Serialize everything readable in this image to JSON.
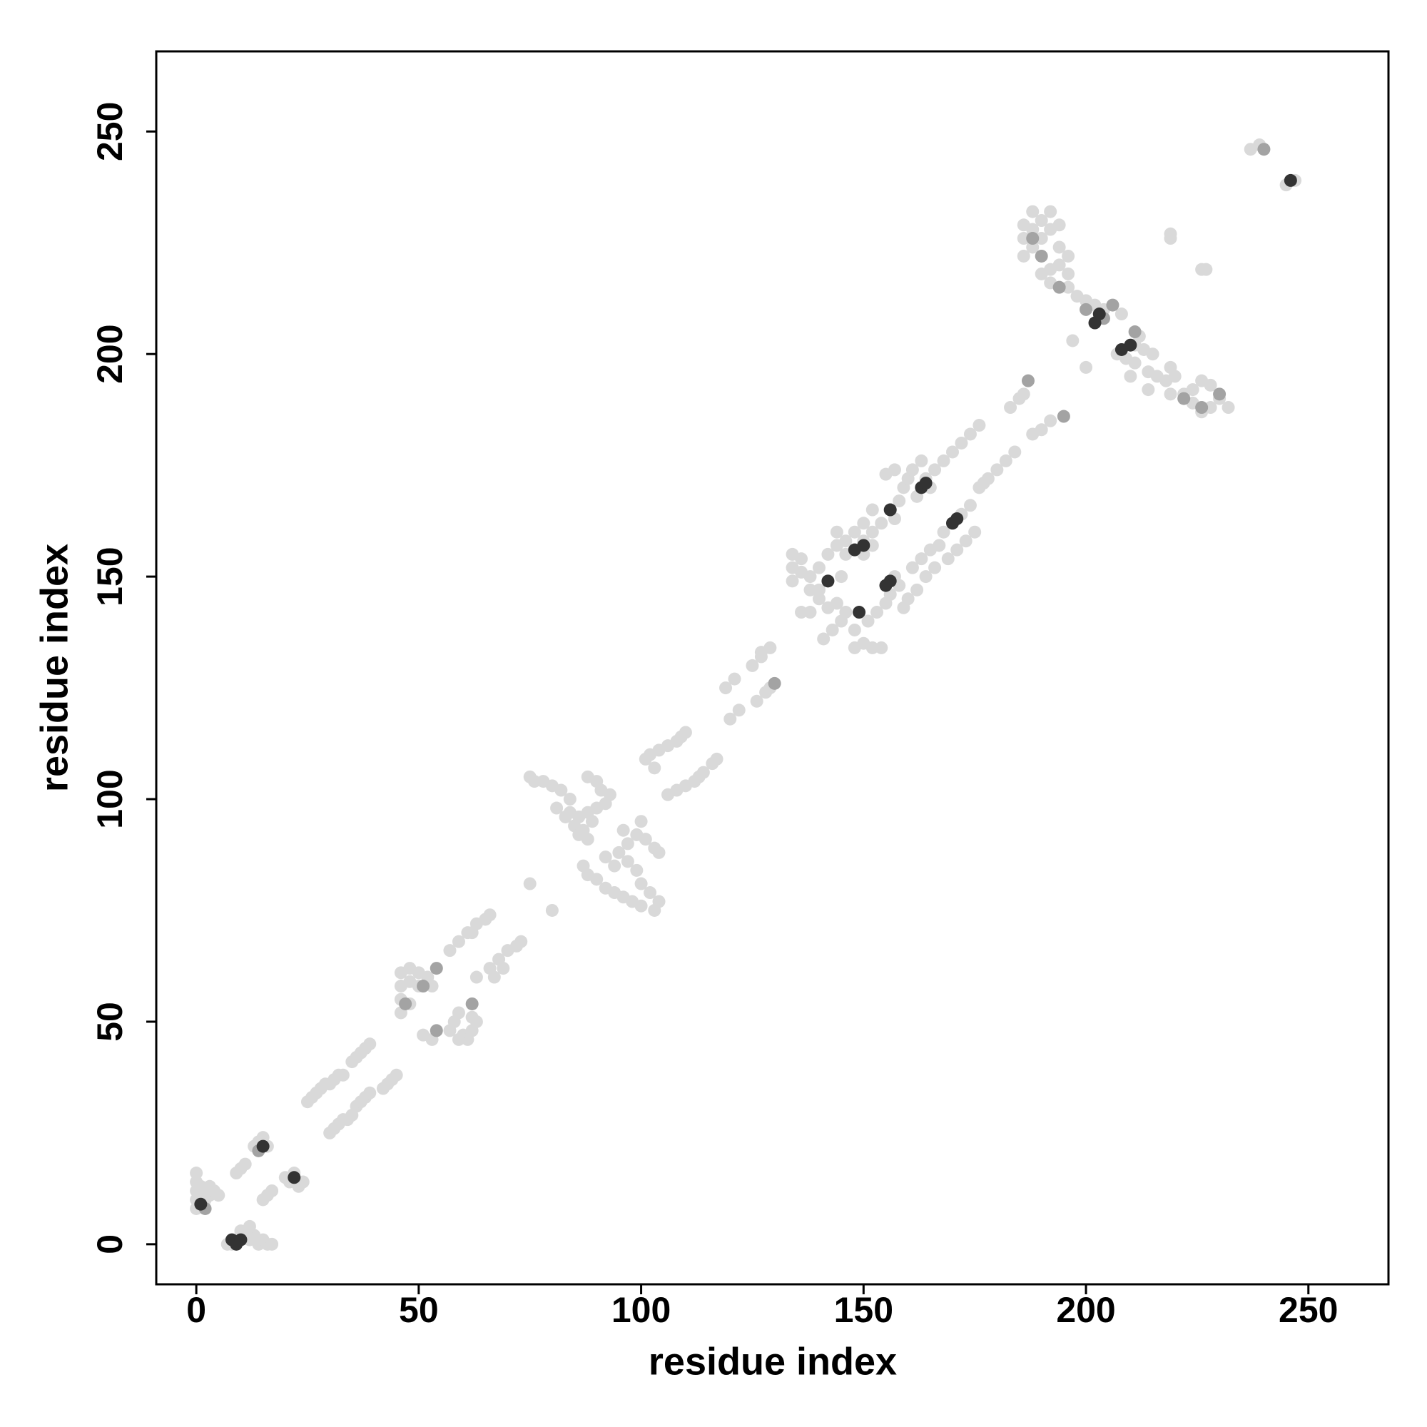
{
  "chart_data": {
    "type": "scatter",
    "xlabel": "residue index",
    "ylabel": "residue index",
    "xlim": [
      -9,
      268
    ],
    "ylim": [
      -9,
      268
    ],
    "xticks": [
      0,
      50,
      100,
      150,
      200,
      250
    ],
    "yticks": [
      0,
      50,
      100,
      150,
      200,
      250
    ],
    "grid": false,
    "series": [
      {
        "color": "#d9d9d9",
        "x": [
          0,
          0,
          0,
          0,
          0,
          1,
          1,
          2,
          2,
          3,
          3,
          4,
          5,
          7,
          8,
          11,
          12,
          13,
          14,
          15,
          16,
          17,
          10,
          12,
          13,
          14,
          15,
          14,
          16,
          20,
          21,
          22,
          23,
          24,
          9,
          10,
          11,
          15,
          16,
          17,
          25,
          26,
          27,
          28,
          29,
          30,
          31,
          32,
          33,
          35,
          36,
          37,
          38,
          39,
          30,
          31,
          32,
          33,
          34,
          35,
          36,
          37,
          38,
          39,
          42,
          43,
          44,
          45,
          46,
          46,
          46,
          46,
          48,
          48,
          48,
          50,
          50,
          52,
          53,
          51,
          53,
          57,
          58,
          59,
          60,
          61,
          62,
          63,
          59,
          62,
          57,
          59,
          61,
          63,
          65,
          66,
          62,
          63,
          66,
          68,
          70,
          72,
          73,
          67,
          69,
          75,
          80,
          75,
          76,
          78,
          80,
          82,
          84,
          81,
          83,
          85,
          86,
          87,
          88,
          84,
          89,
          88,
          90,
          91,
          93,
          92,
          90,
          88,
          86,
          87,
          88,
          90,
          92,
          94,
          96,
          98,
          100,
          103,
          104,
          102,
          100,
          99,
          97,
          95,
          97,
          99,
          101,
          103,
          104,
          100,
          96,
          94,
          92,
          101,
          102,
          104,
          106,
          108,
          109,
          110,
          103,
          106,
          108,
          110,
          112,
          114,
          116,
          117,
          113,
          119,
          121,
          125,
          127,
          129,
          127,
          120,
          122,
          126,
          128,
          129,
          134,
          134,
          134,
          136,
          136,
          138,
          138,
          140,
          140,
          142,
          142,
          144,
          144,
          146,
          146,
          148,
          148,
          150,
          150,
          152,
          152,
          154,
          156,
          158,
          157,
          159,
          160,
          161,
          163,
          164,
          165,
          162,
          155,
          157,
          150,
          152,
          145,
          142,
          144,
          140,
          138,
          136,
          166,
          168,
          170,
          172,
          174,
          176,
          141,
          143,
          145,
          146,
          148,
          148,
          150,
          152,
          154,
          151,
          153,
          155,
          156,
          157,
          158,
          159,
          160,
          162,
          161,
          163,
          165,
          167,
          168,
          170,
          172,
          174,
          175,
          173,
          171,
          169,
          166,
          164,
          176,
          178,
          180,
          182,
          184,
          177,
          185,
          186,
          183,
          188,
          190,
          192,
          186,
          186,
          186,
          188,
          188,
          188,
          190,
          190,
          192,
          192,
          194,
          194,
          194,
          196,
          196,
          196,
          198,
          200,
          202,
          204,
          208,
          192,
          192,
          190,
          197,
          200,
          207,
          209,
          211,
          211,
          213,
          215,
          214,
          216,
          218,
          219,
          220,
          222,
          224,
          226,
          228,
          230,
          232,
          224,
          226,
          228,
          210,
          214,
          212,
          219,
          219,
          219,
          226,
          227,
          237,
          239,
          247,
          245
        ],
        "y": [
          8,
          10,
          12,
          14,
          16,
          11,
          13,
          10,
          12,
          11,
          13,
          12,
          11,
          0,
          0,
          2,
          1,
          2,
          0,
          1,
          0,
          0,
          3,
          4,
          22,
          23,
          24,
          21,
          22,
          15,
          14,
          16,
          13,
          14,
          16,
          17,
          18,
          10,
          11,
          12,
          32,
          33,
          34,
          35,
          36,
          36,
          37,
          38,
          38,
          41,
          42,
          43,
          44,
          45,
          25,
          26,
          27,
          28,
          28,
          29,
          31,
          32,
          33,
          34,
          35,
          36,
          37,
          38,
          52,
          55,
          58,
          61,
          54,
          59,
          62,
          58,
          61,
          60,
          58,
          47,
          46,
          48,
          50,
          52,
          47,
          46,
          48,
          50,
          46,
          51,
          66,
          68,
          70,
          72,
          73,
          74,
          70,
          60,
          62,
          64,
          66,
          67,
          68,
          60,
          62,
          81,
          75,
          105,
          104,
          104,
          103,
          102,
          100,
          98,
          96,
          94,
          92,
          93,
          91,
          97,
          95,
          105,
          104,
          102,
          101,
          99,
          98,
          97,
          96,
          85,
          83,
          82,
          80,
          79,
          78,
          77,
          76,
          75,
          77,
          79,
          81,
          84,
          86,
          88,
          90,
          92,
          91,
          89,
          88,
          95,
          93,
          85,
          87,
          109,
          110,
          111,
          112,
          113,
          114,
          115,
          107,
          101,
          102,
          103,
          104,
          106,
          108,
          109,
          105,
          125,
          127,
          130,
          132,
          134,
          133,
          118,
          120,
          122,
          124,
          125,
          149,
          152,
          155,
          151,
          154,
          150,
          147,
          145,
          152,
          149,
          155,
          157,
          160,
          158,
          155,
          156,
          160,
          158,
          155,
          160,
          157,
          162,
          165,
          167,
          163,
          170,
          172,
          174,
          176,
          172,
          170,
          168,
          173,
          174,
          162,
          165,
          150,
          143,
          144,
          147,
          142,
          142,
          174,
          176,
          178,
          180,
          182,
          184,
          136,
          138,
          140,
          142,
          138,
          134,
          135,
          134,
          134,
          140,
          142,
          144,
          146,
          150,
          148,
          143,
          145,
          147,
          152,
          154,
          156,
          157,
          160,
          162,
          164,
          166,
          160,
          158,
          156,
          154,
          152,
          150,
          170,
          172,
          174,
          176,
          178,
          171,
          190,
          191,
          188,
          182,
          183,
          185,
          222,
          226,
          229,
          224,
          228,
          232,
          226,
          230,
          228,
          232,
          220,
          224,
          229,
          215,
          218,
          222,
          213,
          212,
          211,
          210,
          209,
          216,
          219,
          218,
          203,
          197,
          200,
          199,
          198,
          202,
          201,
          200,
          196,
          195,
          194,
          197,
          195,
          191,
          189,
          187,
          188,
          190,
          188,
          192,
          194,
          193,
          195,
          192,
          204,
          191,
          226,
          227,
          219,
          219,
          246,
          247,
          239,
          238
        ]
      },
      {
        "color": "#a3a3a3",
        "x": [
          47,
          51,
          54,
          54,
          62,
          130,
          187,
          195,
          188,
          190,
          194,
          200,
          204,
          206,
          211,
          222,
          226,
          230,
          240,
          2,
          14
        ],
        "y": [
          54,
          58,
          62,
          48,
          54,
          126,
          194,
          186,
          226,
          222,
          215,
          210,
          208,
          211,
          205,
          190,
          188,
          191,
          246,
          8,
          21
        ]
      },
      {
        "color": "#333333",
        "x": [
          1,
          8,
          9,
          10,
          15,
          22,
          148,
          150,
          142,
          163,
          164,
          156,
          149,
          156,
          170,
          171,
          155,
          202,
          203,
          208,
          210,
          246
        ],
        "y": [
          9,
          1,
          0,
          1,
          22,
          15,
          156,
          157,
          149,
          170,
          171,
          165,
          142,
          149,
          162,
          163,
          148,
          207,
          209,
          201,
          202,
          239
        ]
      }
    ]
  }
}
